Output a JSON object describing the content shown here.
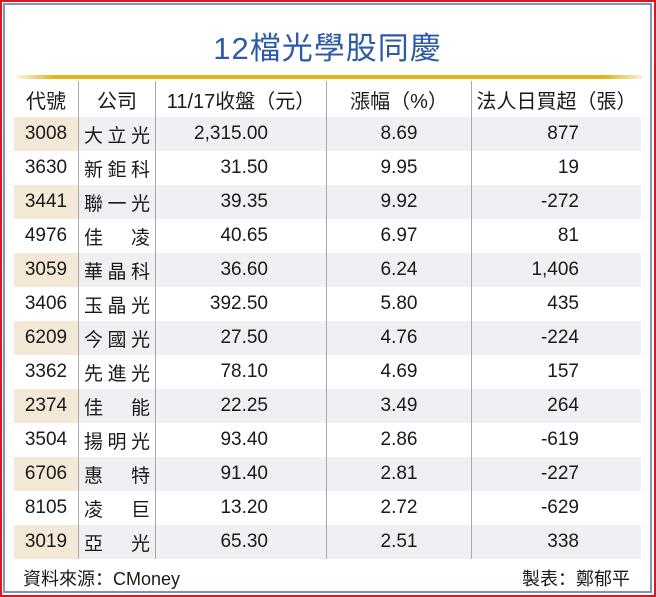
{
  "title": "12檔光學股同慶",
  "table": {
    "headers": [
      "代號",
      "公司",
      "11/17收盤（元）",
      "漲幅（%）",
      "法人日買超（張）"
    ],
    "rows": [
      {
        "code": "3008",
        "name": "大立光",
        "close": "2,315.00",
        "change": "8.69",
        "net_buy": "877"
      },
      {
        "code": "3630",
        "name": "新鉅科",
        "close": "31.50",
        "change": "9.95",
        "net_buy": "19"
      },
      {
        "code": "3441",
        "name": "聯一光",
        "close": "39.35",
        "change": "9.92",
        "net_buy": "-272"
      },
      {
        "code": "4976",
        "name": "佳凌",
        "close": "40.65",
        "change": "6.97",
        "net_buy": "81"
      },
      {
        "code": "3059",
        "name": "華晶科",
        "close": "36.60",
        "change": "6.24",
        "net_buy": "1,406"
      },
      {
        "code": "3406",
        "name": "玉晶光",
        "close": "392.50",
        "change": "5.80",
        "net_buy": "435"
      },
      {
        "code": "6209",
        "name": "今國光",
        "close": "27.50",
        "change": "4.76",
        "net_buy": "-224"
      },
      {
        "code": "3362",
        "name": "先進光",
        "close": "78.10",
        "change": "4.69",
        "net_buy": "157"
      },
      {
        "code": "2374",
        "name": "佳能",
        "close": "22.25",
        "change": "3.49",
        "net_buy": "264"
      },
      {
        "code": "3504",
        "name": "揚明光",
        "close": "93.40",
        "change": "2.86",
        "net_buy": "-619"
      },
      {
        "code": "6706",
        "name": "惠特",
        "close": "91.40",
        "change": "2.81",
        "net_buy": "-227"
      },
      {
        "code": "8105",
        "name": "凌巨",
        "close": "13.20",
        "change": "2.72",
        "net_buy": "-629"
      },
      {
        "code": "3019",
        "name": "亞光",
        "close": "65.30",
        "change": "2.51",
        "net_buy": "338"
      }
    ]
  },
  "footer": {
    "source": "資料來源：CMoney",
    "credit": "製表：鄭郁平"
  },
  "colors": {
    "title": "#2c5aa6",
    "gold_line": "#e0b61a",
    "outer_border": "#e0151b",
    "inner_border": "#7f95b8",
    "alt_row": "#eef0f3",
    "alt_code": "#f3e9d6"
  }
}
